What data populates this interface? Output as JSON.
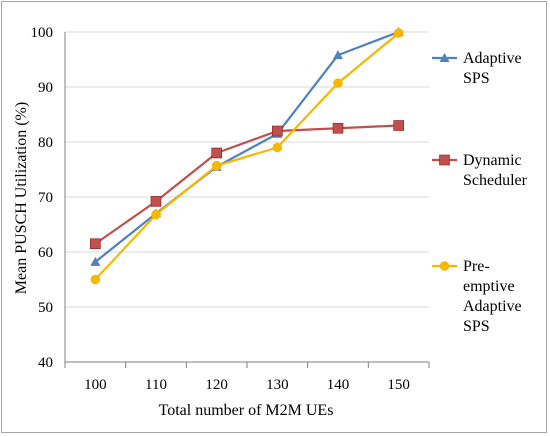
{
  "chart_data": {
    "type": "line",
    "title": "",
    "xlabel": "Total number of M2M UEs",
    "ylabel": "Mean PUSCH Utilization (%)",
    "x": [
      100,
      110,
      120,
      130,
      140,
      150
    ],
    "ylim": [
      40,
      100
    ],
    "yticks": [
      40,
      50,
      60,
      70,
      80,
      90,
      100
    ],
    "grid": "horizontal",
    "legend_placement": "right",
    "series": [
      {
        "name": "Adaptive SPS",
        "legend_lines": [
          "Adaptive",
          "SPS"
        ],
        "marker": "triangle",
        "color": "#4f81bd",
        "values": [
          58.2,
          67.0,
          75.5,
          81.5,
          95.8,
          100.0
        ]
      },
      {
        "name": "Dynamic Scheduler",
        "legend_lines": [
          "Dynamic",
          "Scheduler"
        ],
        "marker": "square",
        "color": "#c0504d",
        "values": [
          61.5,
          69.2,
          78.0,
          82.0,
          82.5,
          83.0
        ]
      },
      {
        "name": "Pre-emptive Adaptive SPS",
        "legend_lines": [
          "Pre-",
          "emptive",
          "Adaptive",
          "SPS"
        ],
        "marker": "circle",
        "color": "#f5b800",
        "values": [
          55.0,
          66.8,
          75.7,
          79.0,
          90.7,
          99.8
        ]
      }
    ]
  }
}
